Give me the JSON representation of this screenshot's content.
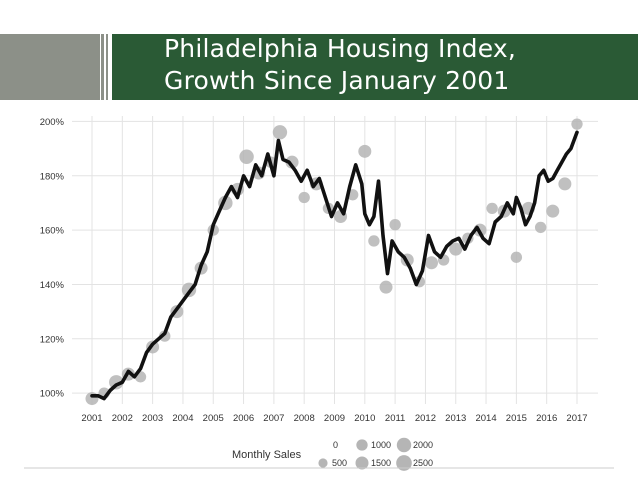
{
  "slide": {
    "title_line1": "Philadelphia Housing Index,",
    "title_line2": "Growth Since January 2001",
    "title_band_color": "#2a5a35",
    "accent_gray": "#8c9088"
  },
  "chart_data": {
    "type": "line",
    "title": "Philadelphia Housing Index, Growth Since January 2001",
    "xlabel": "",
    "ylabel": "",
    "xlim": [
      2001,
      2017
    ],
    "ylim": [
      96,
      202
    ],
    "y_ticks": [
      100,
      120,
      140,
      160,
      180,
      200
    ],
    "y_tick_labels": [
      "100%",
      "120%",
      "140%",
      "160%",
      "180%",
      "200%"
    ],
    "x_ticks": [
      2001,
      2002,
      2003,
      2004,
      2005,
      2006,
      2007,
      2008,
      2009,
      2010,
      2011,
      2012,
      2013,
      2014,
      2015,
      2016,
      2017
    ],
    "x_tick_labels": [
      "2001",
      "2002",
      "2003",
      "2004",
      "2005",
      "2006",
      "2007",
      "2008",
      "2009",
      "2010",
      "2011",
      "2012",
      "2013",
      "2014",
      "2015",
      "2016",
      "2017"
    ],
    "grid": true,
    "legend_position": "bottom",
    "line_color": "#111111",
    "point_color": "#b5b5b5",
    "series": [
      {
        "x": [
          2001.0,
          2001.2,
          2001.4,
          2001.6,
          2001.8,
          2002.0,
          2002.2,
          2002.4,
          2002.6,
          2002.8,
          2003.0,
          2003.2,
          2003.4,
          2003.6,
          2003.8,
          2004.0,
          2004.2,
          2004.4,
          2004.6,
          2004.8,
          2005.0,
          2005.2,
          2005.4,
          2005.6,
          2005.8,
          2006.0,
          2006.2,
          2006.4,
          2006.6,
          2006.8,
          2007.0,
          2007.15,
          2007.3,
          2007.5,
          2007.7,
          2007.9,
          2008.1,
          2008.3,
          2008.5,
          2008.7,
          2008.9,
          2009.1,
          2009.3,
          2009.5,
          2009.7,
          2009.9,
          2010.0,
          2010.15,
          2010.3,
          2010.45,
          2010.6,
          2010.75,
          2010.9,
          2011.1,
          2011.3,
          2011.5,
          2011.7,
          2011.9,
          2012.1,
          2012.3,
          2012.5,
          2012.7,
          2012.9,
          2013.1,
          2013.3,
          2013.5,
          2013.7,
          2013.9,
          2014.1,
          2014.3,
          2014.5,
          2014.7,
          2014.9,
          2015.0,
          2015.15,
          2015.3,
          2015.45,
          2015.6,
          2015.75,
          2015.9,
          2016.05,
          2016.2,
          2016.35,
          2016.5,
          2016.65,
          2016.8,
          2017.0
        ],
        "values": [
          99,
          99,
          98,
          101,
          103,
          104,
          108,
          106,
          109,
          115,
          118,
          120,
          122,
          128,
          131,
          134,
          137,
          140,
          147,
          152,
          162,
          167,
          172,
          176,
          172,
          180,
          176,
          184,
          180,
          188,
          180,
          193,
          186,
          185,
          182,
          178,
          182,
          176,
          179,
          172,
          165,
          170,
          166,
          176,
          184,
          177,
          166,
          162,
          165,
          178,
          158,
          144,
          156,
          152,
          150,
          146,
          140,
          145,
          158,
          152,
          150,
          154,
          156,
          157,
          153,
          158,
          161,
          157,
          155,
          163,
          165,
          170,
          166,
          172,
          168,
          162,
          165,
          170,
          180,
          182,
          178,
          179,
          182,
          185,
          188,
          190,
          196
        ]
      }
    ],
    "scatter_points": {
      "x": [
        2001.0,
        2001.4,
        2001.8,
        2002.2,
        2002.6,
        2003.0,
        2003.4,
        2003.8,
        2004.2,
        2004.6,
        2005.0,
        2005.4,
        2005.8,
        2006.1,
        2006.5,
        2006.9,
        2007.2,
        2007.6,
        2008.0,
        2008.4,
        2008.8,
        2009.2,
        2009.6,
        2010.0,
        2010.3,
        2010.7,
        2011.0,
        2011.4,
        2011.8,
        2012.2,
        2012.6,
        2013.0,
        2013.4,
        2013.8,
        2014.2,
        2014.6,
        2015.0,
        2015.4,
        2015.8,
        2016.2,
        2016.6,
        2017.0
      ],
      "values": [
        98,
        100,
        104,
        107,
        106,
        117,
        121,
        130,
        138,
        146,
        160,
        170,
        175,
        187,
        181,
        185,
        196,
        185,
        172,
        177,
        168,
        165,
        173,
        189,
        156,
        139,
        162,
        149,
        141,
        148,
        149,
        153,
        157,
        160,
        168,
        167,
        150,
        168,
        161,
        167,
        177,
        199
      ],
      "sizes": [
        1500,
        1000,
        2000,
        1500,
        1000,
        1500,
        1000,
        1500,
        2000,
        1500,
        1000,
        2000,
        1500,
        2000,
        1500,
        1000,
        2000,
        1500,
        1000,
        1500,
        1000,
        1500,
        1000,
        1500,
        1000,
        1500,
        1000,
        1500,
        1000,
        1500,
        1000,
        1500,
        1000,
        1500,
        1000,
        1500,
        1000,
        1500,
        1000,
        1500,
        1500,
        1000
      ]
    },
    "legend": {
      "title": "Monthly Sales",
      "entries": [
        {
          "label": "0",
          "size": 0
        },
        {
          "label": "500",
          "size": 500
        },
        {
          "label": "1000",
          "size": 1000
        },
        {
          "label": "1500",
          "size": 1500
        },
        {
          "label": "2000",
          "size": 2000
        },
        {
          "label": "2500",
          "size": 2500
        }
      ]
    }
  }
}
